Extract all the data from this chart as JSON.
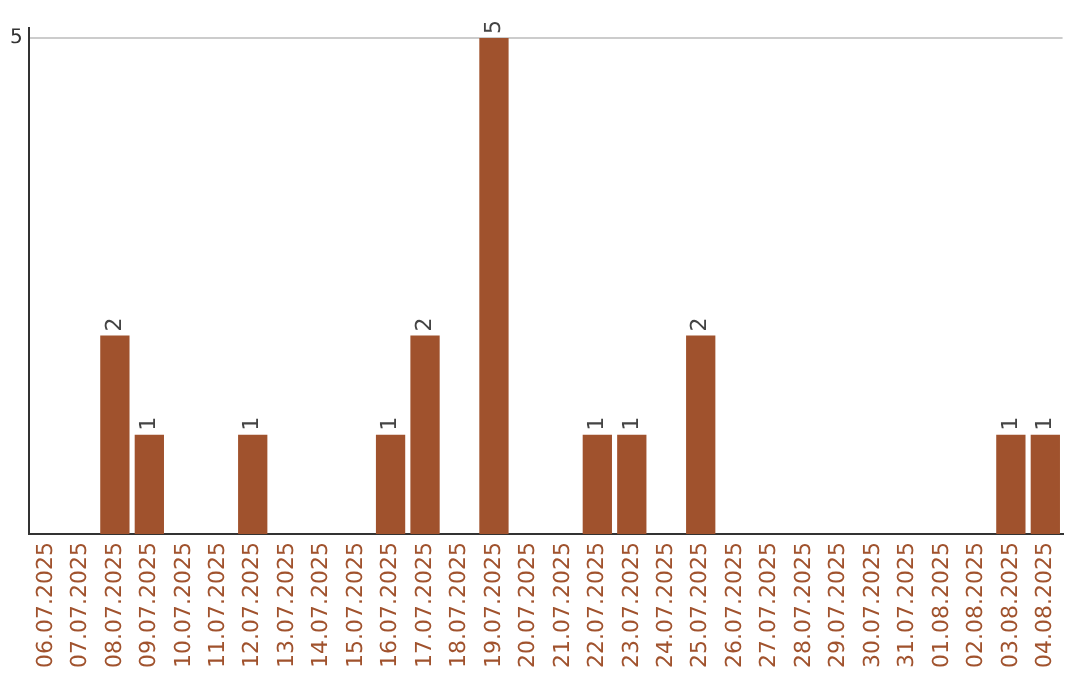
{
  "chart_data": {
    "type": "bar",
    "categories": [
      "06.07.2025",
      "07.07.2025",
      "08.07.2025",
      "09.07.2025",
      "10.07.2025",
      "11.07.2025",
      "12.07.2025",
      "13.07.2025",
      "14.07.2025",
      "15.07.2025",
      "16.07.2025",
      "17.07.2025",
      "18.07.2025",
      "19.07.2025",
      "20.07.2025",
      "21.07.2025",
      "22.07.2025",
      "23.07.2025",
      "24.07.2025",
      "25.07.2025",
      "26.07.2025",
      "27.07.2025",
      "28.07.2025",
      "29.07.2025",
      "30.07.2025",
      "31.07.2025",
      "01.08.2025",
      "02.08.2025",
      "03.08.2025",
      "04.08.2025"
    ],
    "values": [
      0,
      0,
      2,
      1,
      0,
      0,
      1,
      0,
      0,
      0,
      1,
      2,
      0,
      5,
      0,
      0,
      1,
      1,
      0,
      2,
      0,
      0,
      0,
      0,
      0,
      0,
      0,
      0,
      1,
      1
    ],
    "value_labels": [
      null,
      null,
      "2",
      "1",
      null,
      null,
      "1",
      null,
      null,
      null,
      "1",
      "2",
      null,
      "5",
      null,
      null,
      "1",
      "1",
      null,
      "2",
      null,
      null,
      null,
      null,
      null,
      null,
      null,
      null,
      "1",
      "1"
    ],
    "color": "#a0522d",
    "ylim": [
      0,
      5.1
    ],
    "yticks": [
      5
    ],
    "grid": "y",
    "legend": false
  }
}
